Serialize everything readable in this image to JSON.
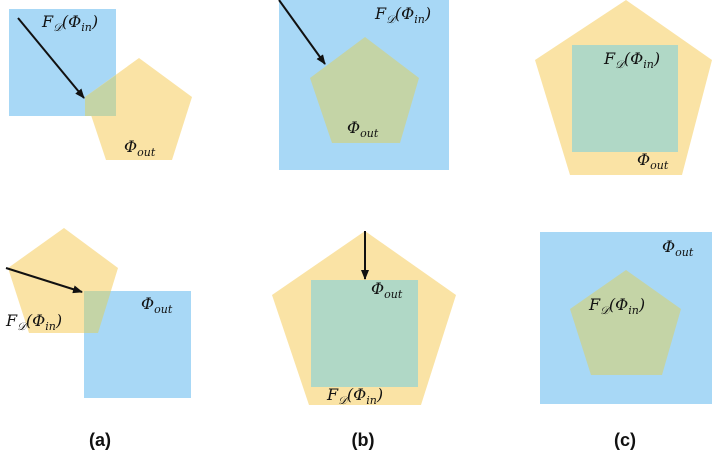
{
  "colors": {
    "pentagon": "#fae3a5",
    "square": "#a8d8f6",
    "overlap_square_over_pentagon": "#b0d8c6",
    "overlap_pentagon_over_square": "#c4d4a6",
    "arrow": "#111111",
    "text": "#111111"
  },
  "labels": {
    "f_out": "F",
    "f_sub": "𝒟",
    "f_arg": "(Φ",
    "f_in_sub": "in",
    "close_paren": ")",
    "phi": "Φ",
    "out_sub": "out"
  },
  "captions": {
    "a": "(a)",
    "b": "(b)",
    "c": "(c)"
  },
  "panels": [
    {
      "id": "a-top",
      "caption": "a",
      "description": "square F_D(Φ_in) partially overlapping pentagon Φ_out with arrow"
    },
    {
      "id": "b-top",
      "caption": "b",
      "description": "pentagon Φ_out inside square F_D(Φ_in) with arrow"
    },
    {
      "id": "c-top",
      "caption": "c",
      "description": "square F_D(Φ_in) inside pentagon Φ_out"
    },
    {
      "id": "a-bottom",
      "caption": "a",
      "description": "pentagon F_D(Φ_in) partially overlapping square Φ_out with arrow"
    },
    {
      "id": "b-bottom",
      "caption": "b",
      "description": "square F_D(Φ_in) inside pentagon Φ_out with arrow"
    },
    {
      "id": "c-bottom",
      "caption": "c",
      "description": "pentagon F_D(Φ_in) inside square Φ_out"
    }
  ]
}
